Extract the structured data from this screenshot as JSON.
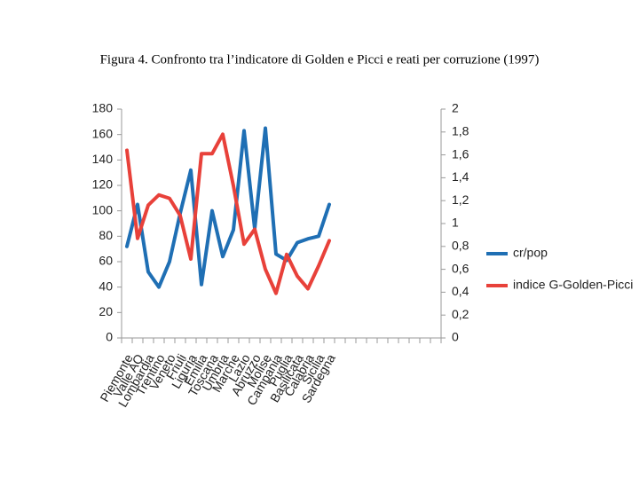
{
  "chart_data": {
    "type": "line",
    "title": "Figura 4.  Confronto tra l’indicatore di Golden e Picci e reati per corruzione (1997)",
    "categories": [
      "Piemonte",
      "Valle AO",
      "Lombardia",
      "Trentino",
      "Veneto",
      "Friuli",
      "Liguria",
      "Emilia",
      "Toscana",
      "Umbria",
      "Marche",
      "Lazio",
      "Abruzzo",
      "Molise",
      "Campania",
      "Puglia",
      "Basilicata",
      "Calabria",
      "Sicilia",
      "Sardegna",
      null,
      null,
      null,
      null,
      null,
      null,
      null,
      null,
      null,
      null
    ],
    "series": [
      {
        "name": "cr/pop",
        "color": "#1f6fb4",
        "values": [
          72,
          105,
          52,
          40,
          60,
          98,
          132,
          42,
          100,
          64,
          85,
          163,
          86,
          165,
          66,
          61,
          75,
          78,
          80,
          105,
          null,
          null,
          null,
          null,
          null,
          null,
          null,
          null,
          null,
          null
        ]
      },
      {
        "name": "indice G-Golden-Picci",
        "color": "#e8413a",
        "axis": "y2",
        "values": [
          1.64,
          0.87,
          1.16,
          1.25,
          1.22,
          1.07,
          0.69,
          1.61,
          1.61,
          1.78,
          1.33,
          0.82,
          0.95,
          0.6,
          0.39,
          0.73,
          0.54,
          0.43,
          0.63,
          0.85,
          null,
          null,
          null,
          null,
          null,
          null,
          null,
          null,
          null,
          null
        ]
      }
    ],
    "ylim": [
      0,
      180
    ],
    "yticks": [
      0,
      20,
      40,
      60,
      80,
      100,
      120,
      140,
      160,
      180
    ],
    "y2lim": [
      0,
      2
    ],
    "y2ticks": [
      0,
      {
        "value": 0.2,
        "label": "0,2"
      },
      {
        "value": 0.4,
        "label": "0,4"
      },
      {
        "value": 0.6,
        "label": "0,6"
      },
      {
        "value": 0.8,
        "label": "0,8"
      },
      1,
      {
        "value": 1.2,
        "label": "1,2"
      },
      {
        "value": 1.4,
        "label": "1,4"
      },
      {
        "value": 1.6,
        "label": "1,6"
      },
      {
        "value": 1.8,
        "label": "1,8"
      },
      2
    ],
    "grid": false,
    "legend": "right"
  }
}
